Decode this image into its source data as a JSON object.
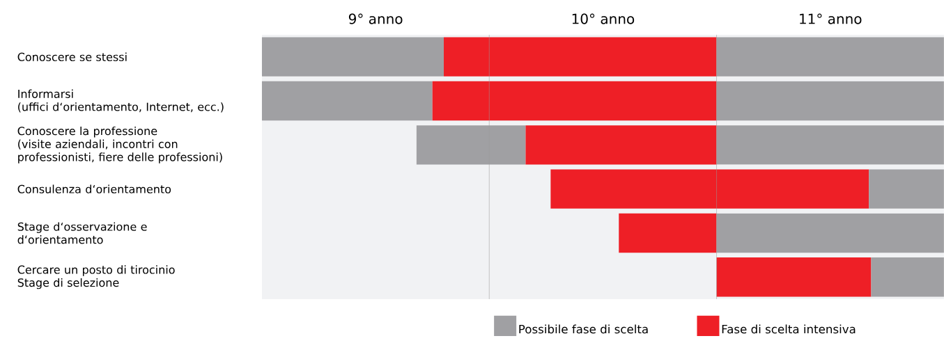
{
  "chart_data": {
    "type": "bar",
    "orientation": "horizontal",
    "categories": [
      "Conoscere se stessi",
      "Informarsi\n(uffici d‘orientamento, Internet, ecc.)",
      "Conoscere la professione\n(visite aziendali, incontri con professionisti, fiere delle professioni)",
      "Consulenza d‘orientamento",
      "Stage d‘osservazione e d‘orientamento",
      "Cercare un posto di tirocinio\nStage di selezione"
    ],
    "xlim": [
      9,
      12
    ],
    "xticks": [
      {
        "value": 9.5,
        "label": "9° anno"
      },
      {
        "value": 10.5,
        "label": "10° anno"
      },
      {
        "value": 11.5,
        "label": "11° anno"
      }
    ],
    "series": [
      {
        "name": "Possibile fase di scelta",
        "color": "#a0a0a3",
        "base": [
          9,
          9,
          9.68,
          null,
          null,
          null
        ],
        "values": [
          0.8,
          0.75,
          0.48,
          null,
          null,
          null
        ]
      },
      {
        "name": "Fase di scelta intensiva",
        "color": "#ee1f26",
        "base": [
          9.8,
          9.75,
          10.16,
          10.27,
          10.57,
          11
        ],
        "values": [
          1.2,
          1.25,
          0.84,
          1.4,
          0.43,
          0.68
        ]
      },
      {
        "color": "#a0a0a3",
        "base": [
          11,
          11,
          11,
          11.67,
          11,
          11.68
        ],
        "values": [
          1,
          1,
          1,
          0.33,
          1,
          0.32
        ]
      }
    ],
    "ref_lines": [
      {
        "axis": "x",
        "value": 10,
        "color": "#999999"
      },
      {
        "axis": "x",
        "value": 11,
        "color": "#999999"
      }
    ],
    "legend": "bottom"
  }
}
